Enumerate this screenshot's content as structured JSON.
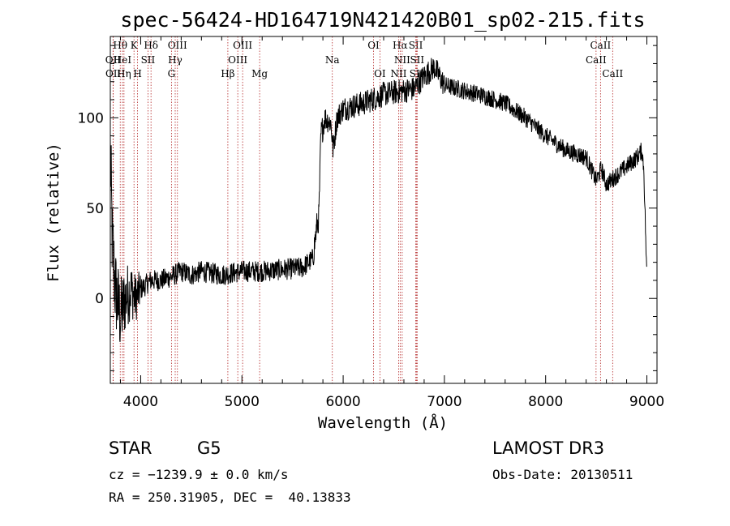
{
  "chart_data": {
    "type": "line",
    "title": "spec-56424-HD164719N421420B01_sp02-215.fits",
    "xlabel": "Wavelength (Å)",
    "ylabel": "Flux (relative)",
    "xlim": [
      3700,
      9100
    ],
    "ylim": [
      -47,
      145
    ],
    "x_ticks": [
      4000,
      5000,
      6000,
      7000,
      8000,
      9000
    ],
    "y_ticks": [
      0,
      50,
      100
    ],
    "grid": false,
    "series": [
      {
        "color": "#000000",
        "anchors": [
          [
            3700,
            80
          ],
          [
            3720,
            30
          ],
          [
            3750,
            5
          ],
          [
            3800,
            -10
          ],
          [
            3850,
            0
          ],
          [
            3900,
            5
          ],
          [
            3950,
            0
          ],
          [
            4000,
            5
          ],
          [
            4100,
            10
          ],
          [
            4200,
            10
          ],
          [
            4300,
            12
          ],
          [
            4400,
            15
          ],
          [
            4500,
            13
          ],
          [
            4600,
            15
          ],
          [
            4700,
            14
          ],
          [
            4800,
            13
          ],
          [
            4900,
            14
          ],
          [
            5000,
            15
          ],
          [
            5200,
            15
          ],
          [
            5400,
            16
          ],
          [
            5600,
            17
          ],
          [
            5700,
            22
          ],
          [
            5740,
            40
          ],
          [
            5760,
            45
          ],
          [
            5780,
            90
          ],
          [
            5820,
            100
          ],
          [
            5880,
            97
          ],
          [
            5900,
            82
          ],
          [
            5940,
            100
          ],
          [
            6000,
            105
          ],
          [
            6200,
            108
          ],
          [
            6400,
            113
          ],
          [
            6600,
            115
          ],
          [
            6700,
            116
          ],
          [
            6800,
            123
          ],
          [
            6900,
            128
          ],
          [
            7000,
            118
          ],
          [
            7200,
            115
          ],
          [
            7400,
            112
          ],
          [
            7600,
            108
          ],
          [
            7800,
            100
          ],
          [
            8000,
            90
          ],
          [
            8200,
            82
          ],
          [
            8400,
            78
          ],
          [
            8500,
            65
          ],
          [
            8550,
            72
          ],
          [
            8600,
            63
          ],
          [
            8700,
            68
          ],
          [
            8800,
            73
          ],
          [
            8900,
            78
          ],
          [
            8950,
            82
          ],
          [
            8970,
            72
          ],
          [
            9000,
            10
          ]
        ]
      }
    ],
    "spectral_lines": [
      {
        "name": "Hθ",
        "wavelength": 3798,
        "row": 0
      },
      {
        "name": "OII",
        "wavelength": 3727,
        "row": 1
      },
      {
        "name": "OII",
        "wavelength": 3729,
        "row": 2
      },
      {
        "name": "HeI",
        "wavelength": 3820,
        "row": 1
      },
      {
        "name": "Hη",
        "wavelength": 3835,
        "row": 2
      },
      {
        "name": "K",
        "wavelength": 3934,
        "row": 0
      },
      {
        "name": "SII",
        "wavelength": 4072,
        "row": 1
      },
      {
        "name": "H",
        "wavelength": 3969,
        "row": 2
      },
      {
        "name": "Hδ",
        "wavelength": 4102,
        "row": 0
      },
      {
        "name": "OIII",
        "wavelength": 4363,
        "row": 0
      },
      {
        "name": "Hγ",
        "wavelength": 4341,
        "row": 1
      },
      {
        "name": "G",
        "wavelength": 4304,
        "row": 2
      },
      {
        "name": "Hβ",
        "wavelength": 4861,
        "row": 2
      },
      {
        "name": "OIII",
        "wavelength": 5007,
        "row": 0
      },
      {
        "name": "OIII",
        "wavelength": 4959,
        "row": 1
      },
      {
        "name": "Mg",
        "wavelength": 5175,
        "row": 2
      },
      {
        "name": "Na",
        "wavelength": 5893,
        "row": 1
      },
      {
        "name": "OI",
        "wavelength": 6300,
        "row": 0
      },
      {
        "name": "OI",
        "wavelength": 6363,
        "row": 2
      },
      {
        "name": "Hα",
        "wavelength": 6563,
        "row": 0
      },
      {
        "name": "NII",
        "wavelength": 6583,
        "row": 1
      },
      {
        "name": "NII",
        "wavelength": 6548,
        "row": 2
      },
      {
        "name": "SII",
        "wavelength": 6717,
        "row": 0
      },
      {
        "name": "SII",
        "wavelength": 6731,
        "row": 1
      },
      {
        "name": "SII",
        "wavelength": 6725,
        "row": 2
      },
      {
        "name": "CaII",
        "wavelength": 8542,
        "row": 0
      },
      {
        "name": "CaII",
        "wavelength": 8498,
        "row": 1
      },
      {
        "name": "CaII",
        "wavelength": 8662,
        "row": 2
      }
    ]
  },
  "info": {
    "class_label": "STAR",
    "subclass": "G5",
    "survey": "LAMOST DR3",
    "cz_line": "cz = −1239.9 ± 0.0 km/s",
    "obs_date": "Obs-Date: 20130511",
    "coord_line": "RA = 250.31905, DEC =  40.13833"
  }
}
